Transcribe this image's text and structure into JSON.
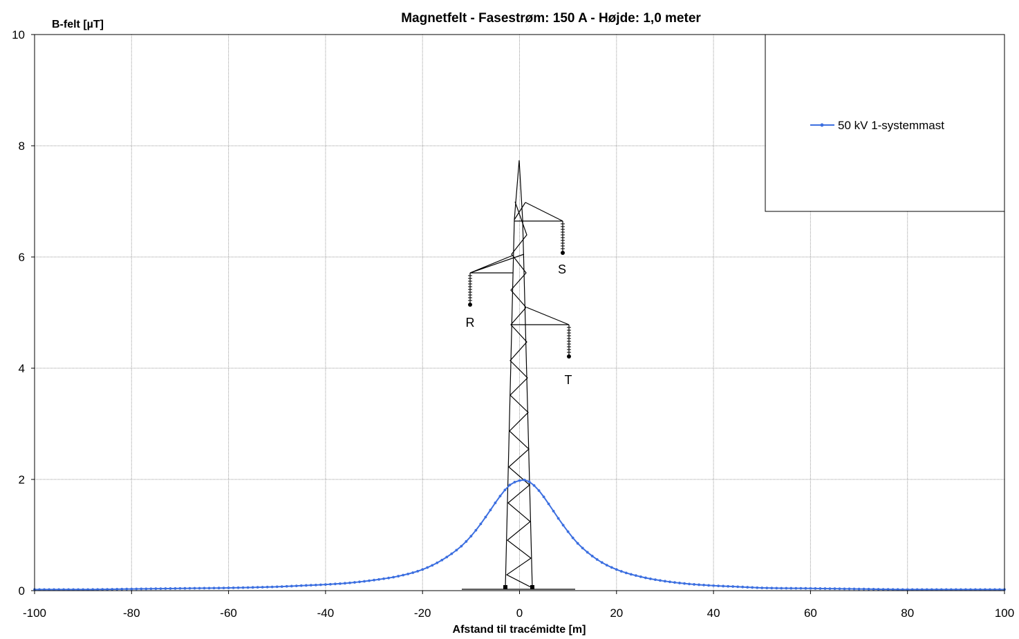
{
  "colors": {
    "series": "#3C6FE0",
    "grid": "#999999",
    "axis": "#000000"
  },
  "chart_data": {
    "type": "line",
    "title": "Magnetfelt  -  Fasestrøm: 150 A  -  Højde: 1,0 meter",
    "xlabel": "Afstand til tracémidte [m]",
    "ylabel": "B-felt [µT]",
    "xlim": [
      -100,
      100
    ],
    "ylim": [
      0,
      10
    ],
    "x_ticks": [
      "-100",
      "-80",
      "-60",
      "-40",
      "-20",
      "0",
      "20",
      "40",
      "60",
      "80",
      "100"
    ],
    "y_ticks": [
      "0",
      "2",
      "4",
      "6",
      "8",
      "10"
    ],
    "grid": true,
    "legend_position": "top-right",
    "series": [
      {
        "name": "50 kV 1-systemmast",
        "marker": "dot",
        "x": [
          -100,
          -90,
          -80,
          -70,
          -60,
          -50,
          -45,
          -40,
          -35,
          -30,
          -25,
          -20,
          -16,
          -12,
          -10,
          -8,
          -6,
          -4,
          -2,
          0,
          1,
          2,
          4,
          6,
          8,
          10,
          12,
          16,
          20,
          25,
          30,
          35,
          40,
          45,
          50,
          60,
          70,
          80,
          90,
          100
        ],
        "y": [
          0.02,
          0.02,
          0.03,
          0.04,
          0.05,
          0.07,
          0.09,
          0.11,
          0.14,
          0.19,
          0.26,
          0.38,
          0.55,
          0.8,
          0.98,
          1.2,
          1.45,
          1.7,
          1.9,
          1.98,
          1.99,
          1.96,
          1.8,
          1.56,
          1.3,
          1.06,
          0.85,
          0.56,
          0.38,
          0.25,
          0.17,
          0.12,
          0.09,
          0.07,
          0.05,
          0.04,
          0.03,
          0.02,
          0.02,
          0.02
        ]
      }
    ],
    "annotations": {
      "phase_labels": [
        "R",
        "S",
        "T"
      ]
    }
  }
}
